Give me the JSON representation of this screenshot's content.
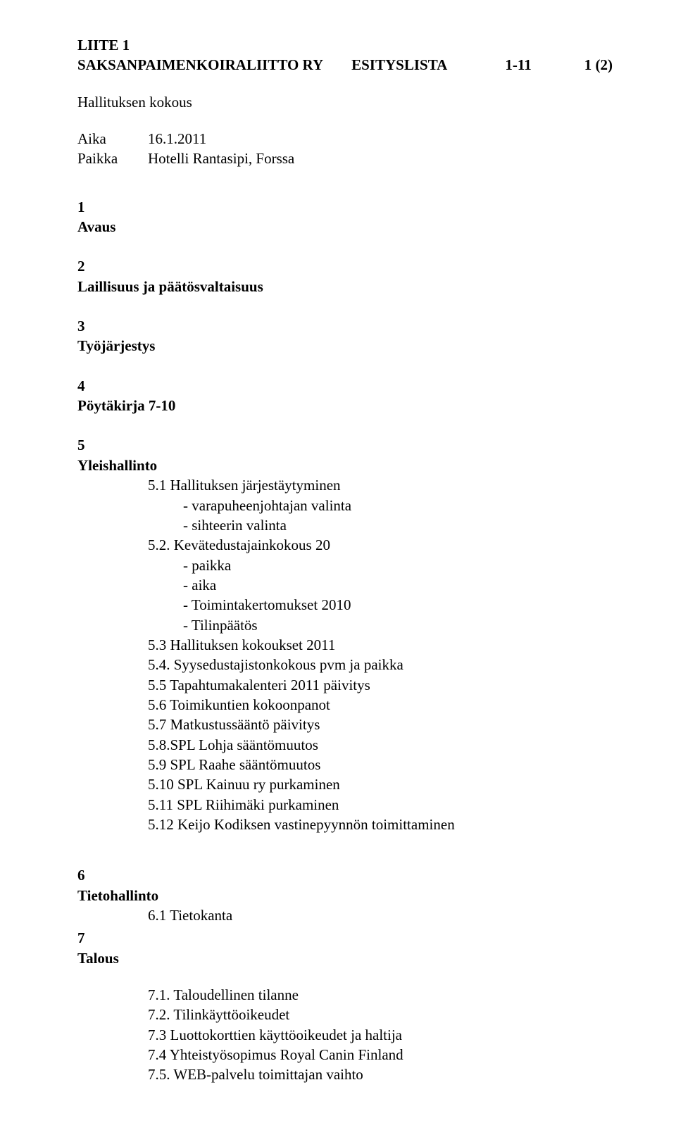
{
  "header": {
    "line1": "LIITE 1",
    "org": "SAKSANPAIMENKOIRALIITTO RY",
    "doctype": "ESITYSLISTA",
    "docnum": "1-11",
    "pageinfo": "1 (2)",
    "subtitle": "Hallituksen kokous",
    "aika_label": "Aika",
    "aika_value": "16.1.2011",
    "paikka_label": "Paikka",
    "paikka_value": "Hotelli Rantasipi, Forssa"
  },
  "sections": {
    "s1": {
      "num": "1",
      "title": "Avaus"
    },
    "s2": {
      "num": "2",
      "title": "Laillisuus ja päätösvaltaisuus"
    },
    "s3": {
      "num": "3",
      "title": "Työjärjestys"
    },
    "s4": {
      "num": "4",
      "title": "Pöytäkirja 7-10"
    },
    "s5": {
      "num": "5",
      "title": "Yleishallinto",
      "i51": "5.1  Hallituksen järjestäytyminen",
      "i51a": "- varapuheenjohtajan valinta",
      "i51b": "- sihteerin valinta",
      "i52": "5.2. Kevätedustajainkokous 20",
      "i52a": "- paikka",
      "i52b": "- aika",
      "i52c": "- Toimintakertomukset 2010",
      "i52d": "- Tilinpäätös",
      "i53": "5.3  Hallituksen kokoukset 2011",
      "i54": "5.4. Syysedustajistonkokous pvm ja paikka",
      "i55": "5.5 Tapahtumakalenteri 2011 päivitys",
      "i56": "5.6 Toimikuntien kokoonpanot",
      "i57": "5.7 Matkustussääntö päivitys",
      "i58": "5.8.SPL Lohja sääntömuutos",
      "i59": "5.9 SPL Raahe sääntömuutos",
      "i510": "5.10 SPL Kainuu ry purkaminen",
      "i511": "5.11 SPL Riihimäki purkaminen",
      "i512": "5.12 Keijo Kodiksen vastinepyynnön toimittaminen"
    },
    "s6": {
      "num": "6",
      "title": "Tietohallinto",
      "i61": "6.1 Tietokanta"
    },
    "s7": {
      "num": "7",
      "title": "Talous",
      "i71": "7.1. Taloudellinen tilanne",
      "i72": "7.2. Tilinkäyttöoikeudet",
      "i73": "7.3  Luottokorttien käyttöoikeudet ja haltija",
      "i74": "7.4  Yhteistyösopimus Royal Canin Finland",
      "i75": "7.5. WEB-palvelu toimittajan vaihto"
    }
  }
}
